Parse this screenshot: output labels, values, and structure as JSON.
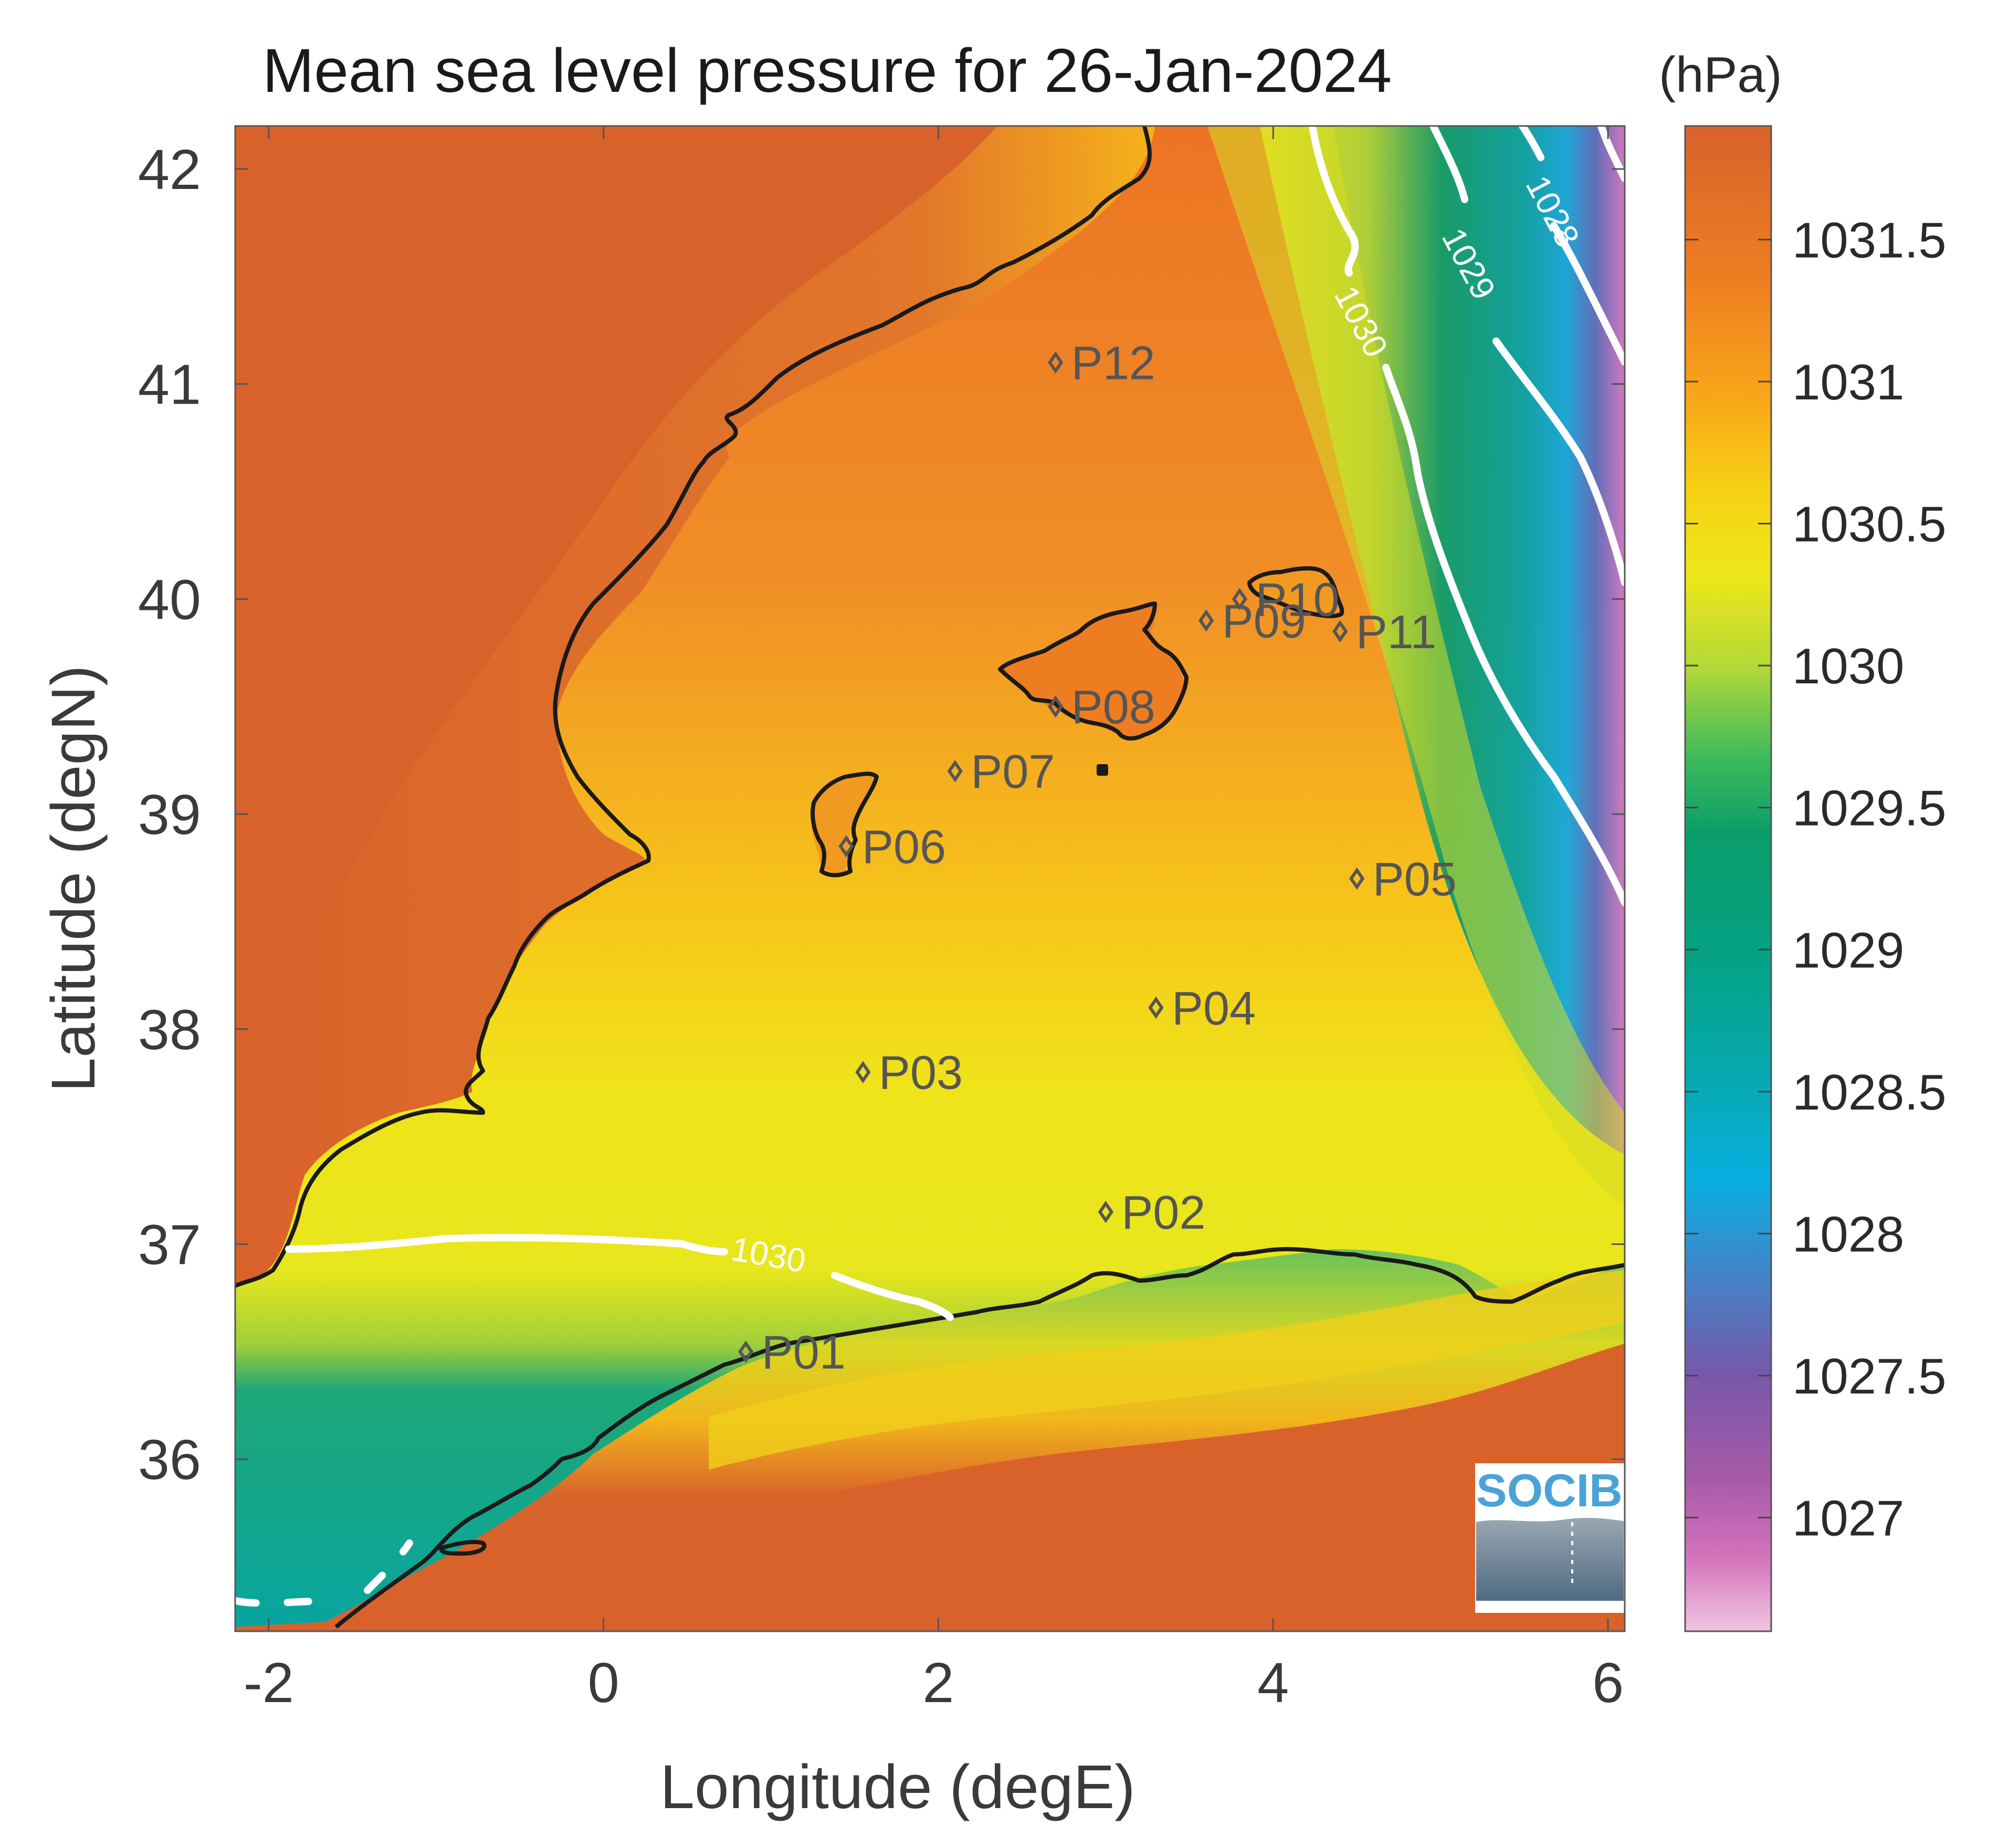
{
  "map": {
    "title": "Mean sea level pressure for 26-Jan-2024",
    "xlabel": "Longitude (degE)",
    "ylabel": "Latitude (degN)",
    "xlim": [
      -2.2,
      6.1
    ],
    "ylim": [
      35.2,
      42.2
    ],
    "xticks": [
      -2,
      0,
      2,
      4,
      6
    ],
    "yticks": [
      36,
      37,
      38,
      39,
      40,
      41,
      42
    ],
    "xtick_labels": [
      "-2",
      "0",
      "2",
      "4",
      "6"
    ],
    "ytick_labels": [
      "36",
      "37",
      "38",
      "39",
      "40",
      "41",
      "42"
    ],
    "colormap": "parula-like (pink-purple-blue-green-yellow-orange)",
    "land_color": "#d9622b"
  },
  "colorbar": {
    "unit": "(hPa)",
    "range": [
      1026.6,
      1031.9
    ],
    "ticks": [
      "1031.5",
      "1031",
      "1030.5",
      "1030",
      "1029.5",
      "1029",
      "1028.5",
      "1028",
      "1027.5",
      "1027"
    ],
    "tick_values": [
      1031.5,
      1031,
      1030.5,
      1030,
      1029.5,
      1029,
      1028.5,
      1028,
      1027.5,
      1027
    ]
  },
  "contours": [
    {
      "level": 1030,
      "label": "1030"
    },
    {
      "level": 1029,
      "label": "1029"
    },
    {
      "level": 1028,
      "label": "1028"
    }
  ],
  "stations": [
    {
      "id": "P01",
      "lon": 0.85,
      "lat": 36.5
    },
    {
      "id": "P02",
      "lon": 3.0,
      "lat": 37.15
    },
    {
      "id": "P03",
      "lon": 1.55,
      "lat": 37.8
    },
    {
      "id": "P04",
      "lon": 3.3,
      "lat": 38.1
    },
    {
      "id": "P05",
      "lon": 4.5,
      "lat": 38.7
    },
    {
      "id": "P06",
      "lon": 1.45,
      "lat": 38.85
    },
    {
      "id": "P07",
      "lon": 2.1,
      "lat": 39.2
    },
    {
      "id": "P08",
      "lon": 2.7,
      "lat": 39.5
    },
    {
      "id": "P09",
      "lon": 3.6,
      "lat": 39.9
    },
    {
      "id": "P10",
      "lon": 3.8,
      "lat": 40.0
    },
    {
      "id": "P11",
      "lon": 4.4,
      "lat": 39.85
    },
    {
      "id": "P12",
      "lon": 2.7,
      "lat": 41.1
    }
  ],
  "logo": {
    "text": "SOCIB"
  }
}
